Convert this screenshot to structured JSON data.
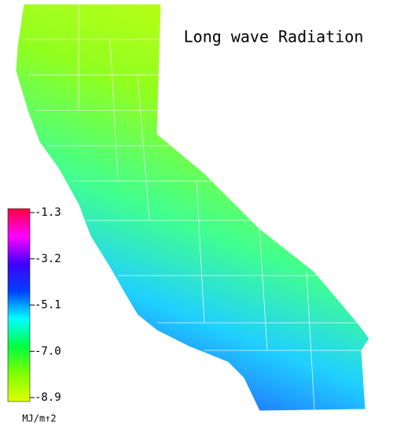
{
  "title": "Long wave Radiation",
  "colorbar": {
    "range": [
      -8.9,
      -1.3
    ],
    "ticks": [
      -1.3,
      -3.2,
      -5.1,
      {
        "value": -7,
        "label": "-7.0"
      },
      -8.9
    ],
    "colors": [
      "#ff0040",
      "#ff00ff",
      "#4000ff",
      "#0040ff",
      "#00ffff",
      "#00ff40",
      "#80ff00",
      "#e0ff00"
    ],
    "label": "MJ/m↑2"
  }
}
